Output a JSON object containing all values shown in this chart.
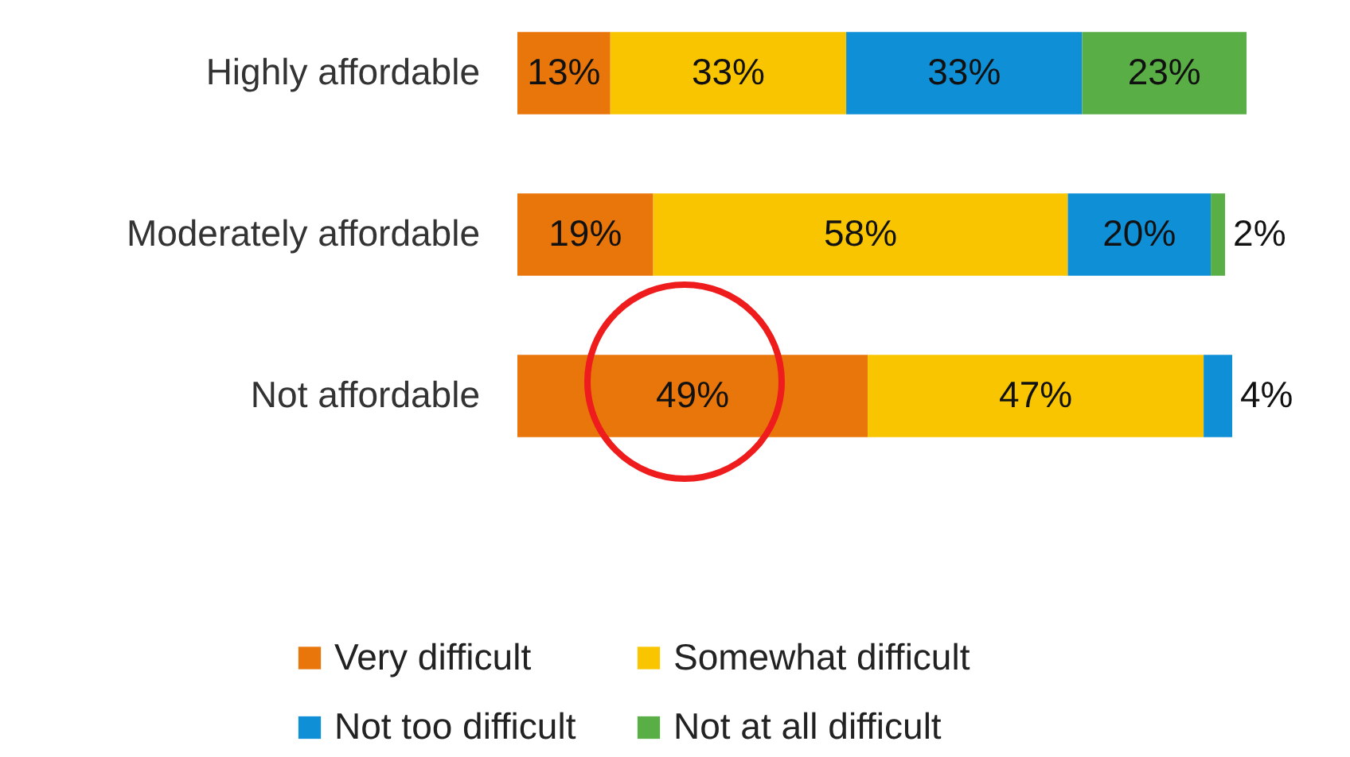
{
  "chart_data": {
    "type": "bar",
    "orientation": "horizontal",
    "stacked": true,
    "categories": [
      "Highly affordable",
      "Moderately affordable",
      "Not affordable"
    ],
    "series": [
      {
        "name": "Very difficult",
        "color": "#e8760b",
        "values": [
          13,
          19,
          49
        ],
        "value_labels": [
          "13%",
          "19%",
          "49%"
        ]
      },
      {
        "name": "Somewhat difficult",
        "color": "#f9c500",
        "values": [
          33,
          58,
          47
        ],
        "value_labels": [
          "33%",
          "58%",
          "47%"
        ]
      },
      {
        "name": "Not too difficult",
        "color": "#0f8fd6",
        "values": [
          33,
          20,
          4
        ],
        "value_labels": [
          "33%",
          "20%",
          "4%"
        ]
      },
      {
        "name": "Not at all difficult",
        "color": "#5aae46",
        "values": [
          23,
          2,
          null
        ],
        "value_labels": [
          "23%",
          "2%",
          null
        ]
      }
    ],
    "legend": "bottom"
  }
}
